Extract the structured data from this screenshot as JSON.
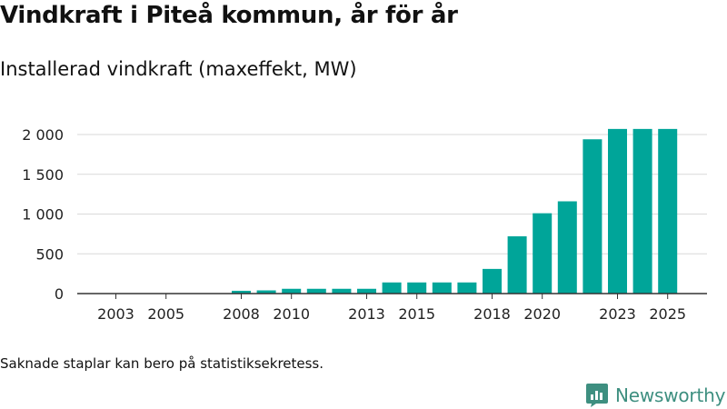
{
  "header": {
    "title": "Vindkraft i Piteå kommun, år för år",
    "subtitle": "Installerad vindkraft (maxeffekt, MW)"
  },
  "footnote": "Saknade staplar kan bero på statistiksekretess.",
  "brand": {
    "name": "Newsworthy",
    "color": "#3e8f80"
  },
  "colors": {
    "bar": "#00a599",
    "grid": "#d9d9d9",
    "axis": "#333333"
  },
  "chart_data": {
    "type": "bar",
    "title": "Vindkraft i Piteå kommun, år för år",
    "ylabel": "Installerad vindkraft (maxeffekt, MW)",
    "xlabel": "",
    "ylim": [
      0,
      2000
    ],
    "yticks": [
      0,
      500,
      1000,
      1500,
      2000
    ],
    "ytick_labels": [
      "0",
      "500",
      "1 000",
      "1 500",
      "2 000"
    ],
    "grid": true,
    "categories": [
      "2003",
      "2004",
      "2005",
      "2006",
      "2007",
      "2008",
      "2009",
      "2010",
      "2011",
      "2012",
      "2013",
      "2014",
      "2015",
      "2016",
      "2017",
      "2018",
      "2019",
      "2020",
      "2021",
      "2022",
      "2023",
      "2024",
      "2025"
    ],
    "values": [
      0,
      0,
      0,
      0,
      0,
      35,
      40,
      60,
      60,
      60,
      60,
      140,
      140,
      140,
      140,
      310,
      720,
      1010,
      1160,
      1940,
      2070,
      2070,
      2070
    ],
    "xtick_labels": [
      "2003",
      "2005",
      "2008",
      "2010",
      "2013",
      "2015",
      "2018",
      "2020",
      "2023",
      "2025"
    ]
  }
}
